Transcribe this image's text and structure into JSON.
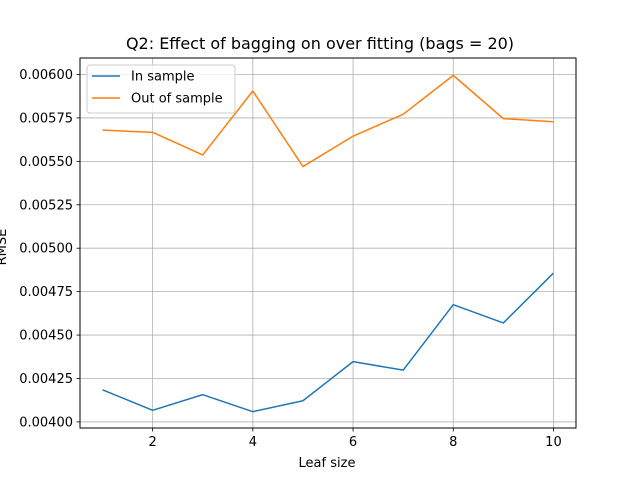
{
  "chart_data": {
    "type": "line",
    "title": "Q2: Effect of bagging on over fitting (bags = 20)",
    "xlabel": "Leaf size",
    "ylabel": "RMSE",
    "x": [
      1,
      2,
      3,
      4,
      5,
      6,
      7,
      8,
      9,
      10
    ],
    "xlim": [
      0.55,
      10.45
    ],
    "ylim": [
      0.003965,
      0.006095
    ],
    "x_ticks": [
      2,
      4,
      6,
      8,
      10
    ],
    "y_ticks": [
      0.004,
      0.00425,
      0.0045,
      0.00475,
      0.005,
      0.00525,
      0.0055,
      0.00575,
      0.006
    ],
    "x_tick_labels": [
      "2",
      "4",
      "6",
      "8",
      "10"
    ],
    "y_tick_labels": [
      "0.00400",
      "0.00425",
      "0.00450",
      "0.00475",
      "0.00500",
      "0.00525",
      "0.00550",
      "0.00575",
      "0.00600"
    ],
    "grid": true,
    "legend_position": "top-left",
    "series": [
      {
        "name": "In sample",
        "color": "#1f77b4",
        "values": [
          0.004185,
          0.004067,
          0.004157,
          0.004059,
          0.004122,
          0.004347,
          0.004298,
          0.004675,
          0.00457,
          0.004857
        ]
      },
      {
        "name": "Out of sample",
        "color": "#ff7f0e",
        "values": [
          0.00568,
          0.005667,
          0.005537,
          0.005905,
          0.00547,
          0.005645,
          0.005771,
          0.005995,
          0.005746,
          0.005728
        ]
      }
    ]
  }
}
